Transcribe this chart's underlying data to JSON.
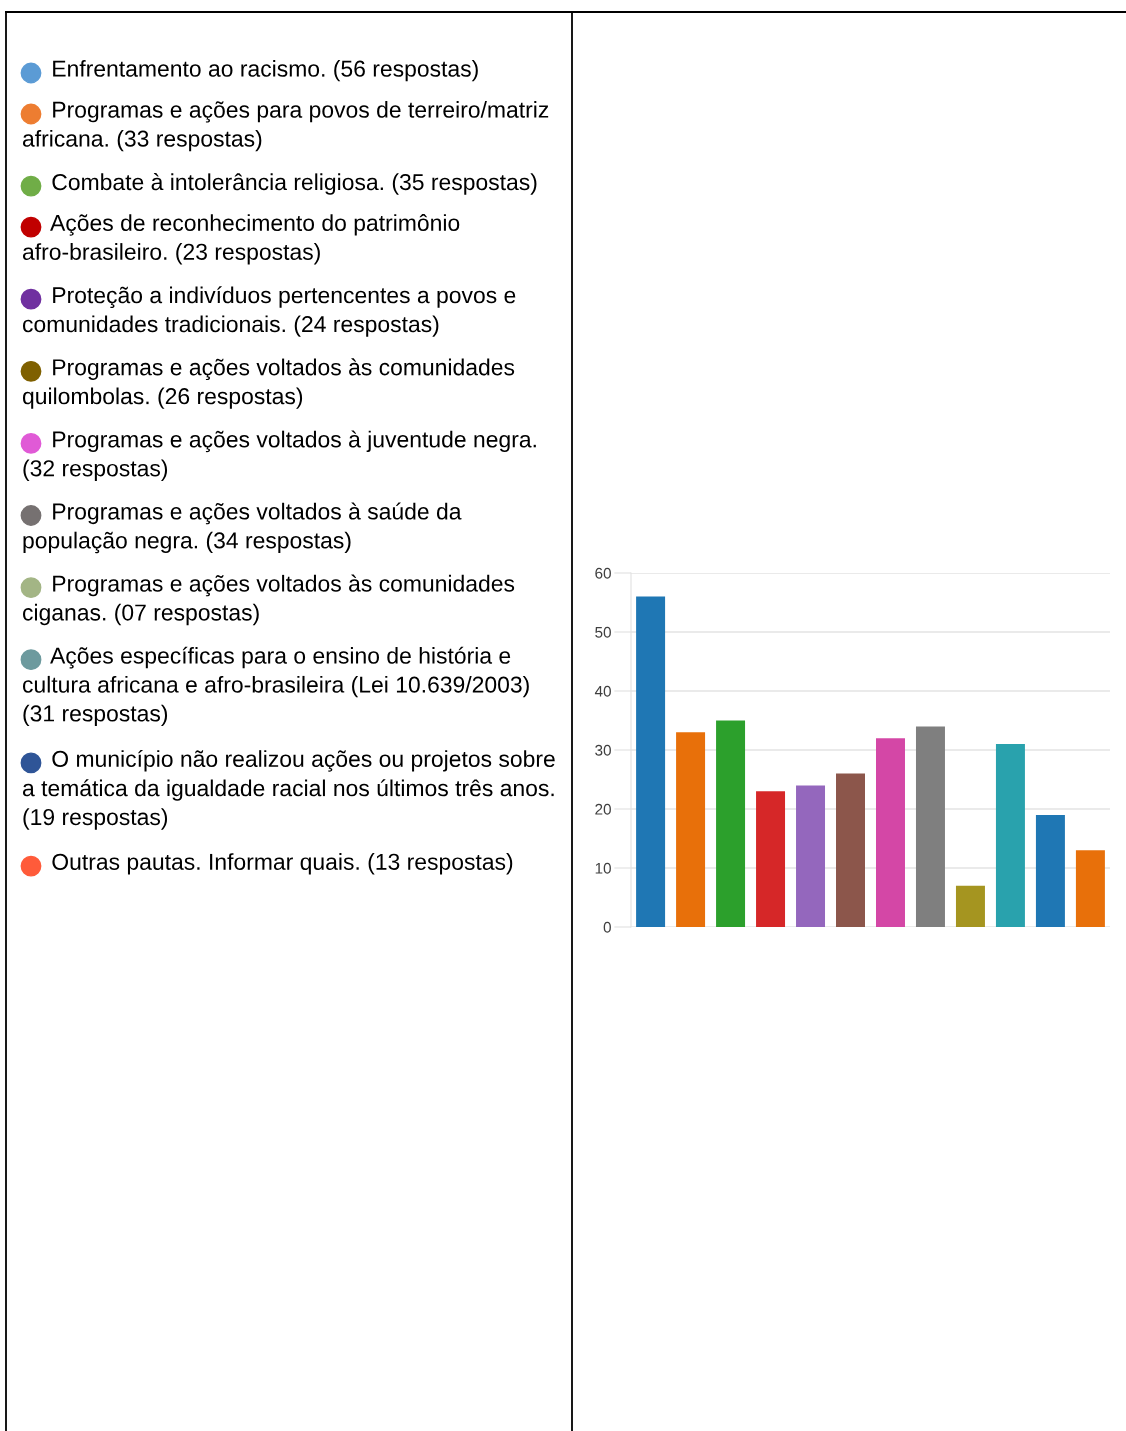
{
  "chart_data": [
    {
      "type": "other",
      "annotations": [
        "Enfrentamento ao racismo. (56 respostas)",
        "Programas e ações para povos de terreiro/matriz africana. (33 respostas)",
        "Combate à intolerância religiosa. (35 respostas)",
        "Ações de reconhecimento do patrimônio afro-brasileiro. (23 respostas)",
        "Proteção a indivíduos pertencentes a povos e comunidades tradicionais. (24 respostas)",
        "Programas e ações voltados às comunidades quilombolas. (26 respostas)",
        "Programas e ações voltados à juventude negra. (32 respostas)",
        "Programas e ações voltados à saúde da população negra. (34 respostas)",
        "Programas e ações voltados às comunidades ciganas. (07 respostas)",
        "Ações específicas para o ensino de história e cultura africana e afro-brasileira (Lei 10.639/2003) (31 respostas)",
        "O município não realizou ações ou projetos sobre a temática da igualdade racial nos últimos três anos. (19 respostas)",
        "Outras pautas. Informar quais. (13 respostas)"
      ],
      "colors": [
        "#5b9bd5",
        "#ed7d31",
        "#70ad47",
        "#c00000",
        "#7030a0",
        "#7f6000",
        "#e05ad6",
        "#767171",
        "#a3b585",
        "#6d9a9e",
        "#2f5597",
        "#ff5b3a"
      ]
    },
    {
      "type": "bar",
      "categories": [
        null,
        null,
        null,
        null,
        null,
        null,
        null,
        null,
        null,
        null,
        null,
        null
      ],
      "values": [
        56,
        33,
        35,
        23,
        24,
        26,
        32,
        34,
        7,
        31,
        19,
        13
      ],
      "colors": [
        "#1f77b4",
        "#e8700a",
        "#2ca02c",
        "#d62728",
        "#9467bd",
        "#8c564b",
        "#d447a6",
        "#7f7f7f",
        "#a59520",
        "#29a2ad",
        "#1f77b4",
        "#e8700a"
      ],
      "ylim": [
        0,
        60
      ],
      "yticks": [
        0,
        10,
        20,
        30,
        40,
        50,
        60
      ],
      "grid": "y",
      "legend": false
    }
  ]
}
